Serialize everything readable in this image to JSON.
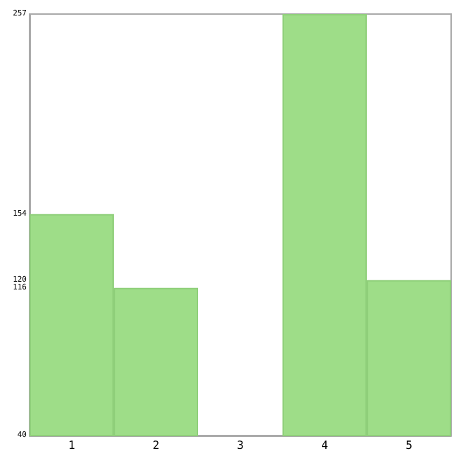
{
  "chart_data": {
    "type": "bar",
    "categories": [
      "1",
      "2",
      "3",
      "4",
      "5"
    ],
    "values": [
      154,
      116,
      40,
      257,
      120
    ],
    "color": "#9edd88",
    "ylim": [
      40,
      257
    ],
    "yticks": [
      40,
      116,
      120,
      154,
      257
    ],
    "grid": false
  }
}
